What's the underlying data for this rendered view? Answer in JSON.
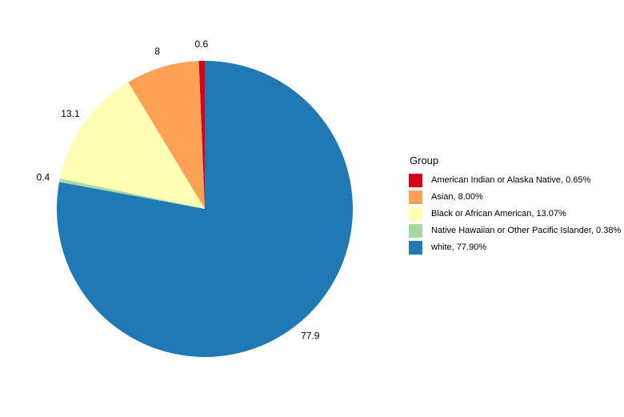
{
  "chart_data": {
    "type": "pie",
    "title": "",
    "background": "#FFFFFF",
    "label_color": "#000000",
    "slice_order": "counterclockwise from 12 o'clock",
    "legend": {
      "title": "Group",
      "position": "right"
    },
    "slices": [
      {
        "group": "American Indian or Alaska Native",
        "key": "american-indian-or-alaska-native",
        "percent": 0.65,
        "pie_label": "0.6",
        "legend_label": "American Indian or Alaska Native, 0.65%",
        "color": "#D4021D"
      },
      {
        "group": "Asian",
        "key": "asian",
        "percent": 8.0,
        "pie_label": "8",
        "legend_label": "Asian, 8.00%",
        "color": "#FDA155"
      },
      {
        "group": "Black or African American",
        "key": "black-or-african-american",
        "percent": 13.07,
        "pie_label": "13.1",
        "legend_label": "Black or African American, 13.07%",
        "color": "#FEFEB4"
      },
      {
        "group": "Native Hawaiian or Other Pacific Islander",
        "key": "native-hawaiian-or-other-pacific-islander",
        "percent": 0.38,
        "pie_label": "0.4",
        "legend_label": "Native Hawaiian or Other Pacific Islander, 0.38%",
        "color": "#A2DAA1"
      },
      {
        "group": "white",
        "key": "white",
        "percent": 77.9,
        "pie_label": "77.9",
        "legend_label": "white, 77.90%",
        "color": "#1E79B5"
      }
    ]
  }
}
